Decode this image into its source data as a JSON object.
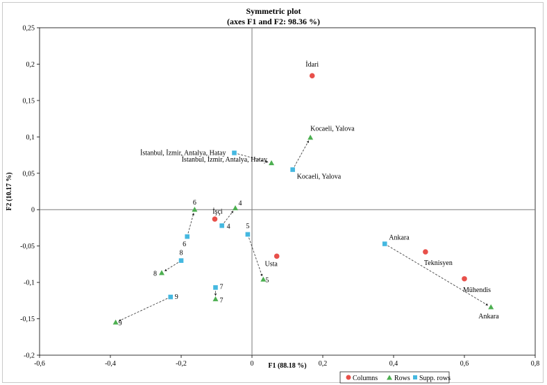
{
  "chart_data": {
    "type": "scatter",
    "title": "Symmetric plot",
    "subtitle": "(axes F1 and F2: 98.36 %)",
    "xlabel": "F1 (88.18 %)",
    "ylabel": "F2 (10.17 %)",
    "xlim": [
      -0.6,
      0.8
    ],
    "ylim": [
      -0.2,
      0.25
    ],
    "xticks": [
      -0.6,
      -0.4,
      -0.2,
      0,
      0.2,
      0.4,
      0.6,
      0.8
    ],
    "yticks": [
      -0.2,
      -0.15,
      -0.1,
      -0.05,
      0,
      0.05,
      0.1,
      0.15,
      0.2,
      0.25
    ],
    "xtick_labels": [
      "-0,6",
      "-0,4",
      "-0,2",
      "0",
      "0,2",
      "0,4",
      "0,6",
      "0,8"
    ],
    "ytick_labels": [
      "-0,2",
      "-0,15",
      "-0,1",
      "-0,05",
      "0",
      "0,05",
      "0,1",
      "0,15",
      "0,2",
      "0,25"
    ],
    "grid": false,
    "legend_position": "bottom-right",
    "colors": {
      "columns": "#e8504a",
      "rows": "#4caf50",
      "supp_rows": "#45b8e0"
    },
    "series": [
      {
        "name": "Columns",
        "marker": "circle",
        "points": [
          {
            "label": "İdari",
            "x": 0.17,
            "y": 0.184
          },
          {
            "label": "İşçi",
            "x": -0.105,
            "y": -0.013
          },
          {
            "label": "Usta",
            "x": 0.07,
            "y": -0.064
          },
          {
            "label": "Teknisyen",
            "x": 0.49,
            "y": -0.058
          },
          {
            "label": "Mühendis",
            "x": 0.6,
            "y": -0.095
          }
        ]
      },
      {
        "name": "Rows",
        "marker": "triangle",
        "points": [
          {
            "label": "Kocaeli, Yalova",
            "x": 0.165,
            "y": 0.099
          },
          {
            "label": "İstanbul, İzmir, Antalya, Hatay",
            "x": 0.055,
            "y": 0.064
          },
          {
            "label": "6",
            "x": -0.162,
            "y": 0.0
          },
          {
            "label": "4",
            "x": -0.047,
            "y": 0.002
          },
          {
            "label": "5",
            "x": 0.032,
            "y": -0.096
          },
          {
            "label": "8",
            "x": -0.255,
            "y": -0.087
          },
          {
            "label": "7",
            "x": -0.103,
            "y": -0.123
          },
          {
            "label": "9",
            "x": -0.385,
            "y": -0.155
          },
          {
            "label": "Ankara",
            "x": 0.675,
            "y": -0.134
          }
        ]
      },
      {
        "name": "Supp. rows",
        "marker": "square",
        "points": [
          {
            "label": "İstanbul, İzmir, Antalya, Hatay",
            "x": -0.05,
            "y": 0.078
          },
          {
            "label": "Kocaeli, Yalova",
            "x": 0.115,
            "y": 0.055
          },
          {
            "label": "6",
            "x": -0.183,
            "y": -0.037
          },
          {
            "label": "4",
            "x": -0.085,
            "y": -0.022
          },
          {
            "label": "5",
            "x": -0.012,
            "y": -0.034
          },
          {
            "label": "8",
            "x": -0.2,
            "y": -0.07
          },
          {
            "label": "7",
            "x": -0.103,
            "y": -0.107
          },
          {
            "label": "9",
            "x": -0.23,
            "y": -0.12
          },
          {
            "label": "Ankara",
            "x": 0.375,
            "y": -0.047
          }
        ]
      }
    ],
    "arrows": [
      {
        "from": [
          -0.05,
          0.078
        ],
        "to": [
          0.055,
          0.064
        ]
      },
      {
        "from": [
          0.115,
          0.055
        ],
        "to": [
          0.165,
          0.099
        ]
      },
      {
        "from": [
          -0.183,
          -0.037
        ],
        "to": [
          -0.162,
          0.0
        ]
      },
      {
        "from": [
          -0.085,
          -0.022
        ],
        "to": [
          -0.047,
          0.002
        ]
      },
      {
        "from": [
          -0.012,
          -0.034
        ],
        "to": [
          0.032,
          -0.096
        ]
      },
      {
        "from": [
          -0.2,
          -0.07
        ],
        "to": [
          -0.255,
          -0.087
        ]
      },
      {
        "from": [
          -0.103,
          -0.107
        ],
        "to": [
          -0.103,
          -0.123
        ]
      },
      {
        "from": [
          -0.23,
          -0.12
        ],
        "to": [
          -0.385,
          -0.155
        ]
      },
      {
        "from": [
          0.375,
          -0.047
        ],
        "to": [
          0.675,
          -0.134
        ]
      }
    ]
  }
}
